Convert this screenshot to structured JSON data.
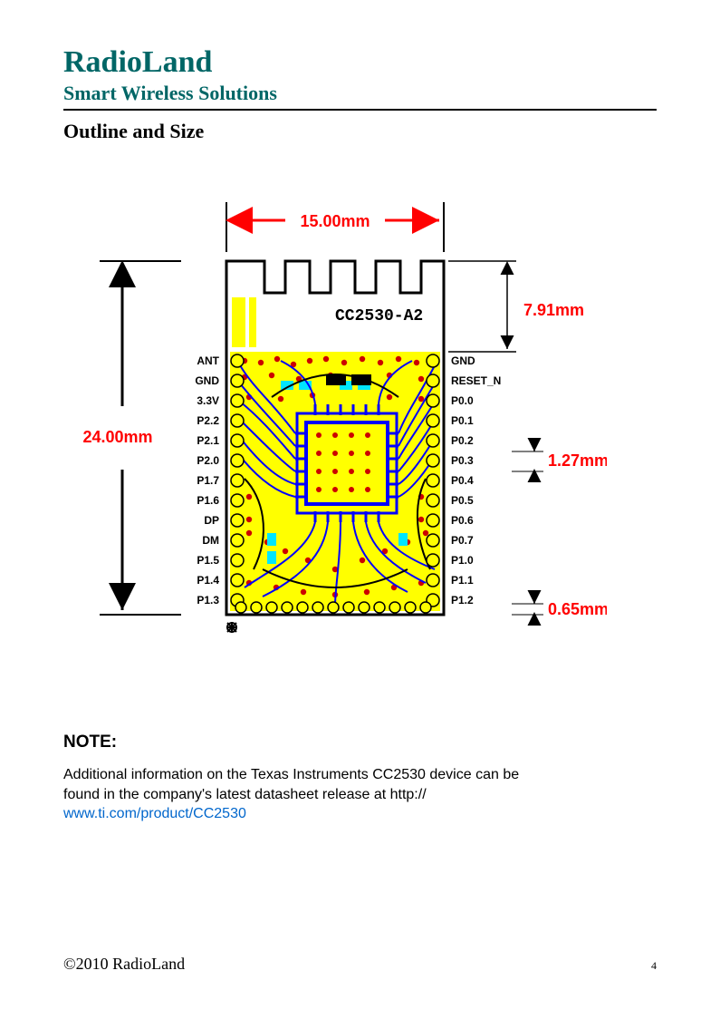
{
  "header": {
    "company": "RadioLand",
    "tagline": "Smart Wireless Solutions"
  },
  "section_title": "Outline and Size",
  "diagram": {
    "silk_label": "CC2530-A2",
    "dimensions": {
      "width_mm": "15.00mm",
      "height_mm": "24.00mm",
      "antenna_height_mm": "7.91mm",
      "pin_pitch_mm": "1.27mm",
      "pad_width_mm": "0.65mm"
    },
    "colors": {
      "dim_text": "#ff0000",
      "dim_line": "#000000",
      "pcb_fill": "#ffff00",
      "copper_trace": "#0000ff",
      "silk": "#000000",
      "via_fill": "#cc0000",
      "cyan_pad": "#00e5ff",
      "pin_text": "#000000",
      "company_text": "#006666",
      "link": "#0066cc"
    },
    "left_pins": [
      "ANT",
      "GND",
      "3.3V",
      "P2.2",
      "P2.1",
      "P2.0",
      "P1.7",
      "P1.6",
      "DP",
      "DM",
      "P1.5",
      "P1.4",
      "P1.3"
    ],
    "right_pins": [
      "GND",
      "RESET_N",
      "P0.0",
      "P0.1",
      "P0.2",
      "P0.3",
      "P0.4",
      "P0.5",
      "P0.6",
      "P0.7",
      "P1.0",
      "P1.1",
      "P1.2"
    ]
  },
  "note": {
    "heading": "NOTE:",
    "body_pre": "Additional information on the Texas Instruments CC2530 device can be found in the company's latest datasheet release at http:// ",
    "link_text": "www.ti.com/product/CC2530",
    "link_href": "http://www.ti.com/product/CC2530"
  },
  "footer": {
    "copyright": "©2010 RadioLand",
    "page": "4"
  }
}
